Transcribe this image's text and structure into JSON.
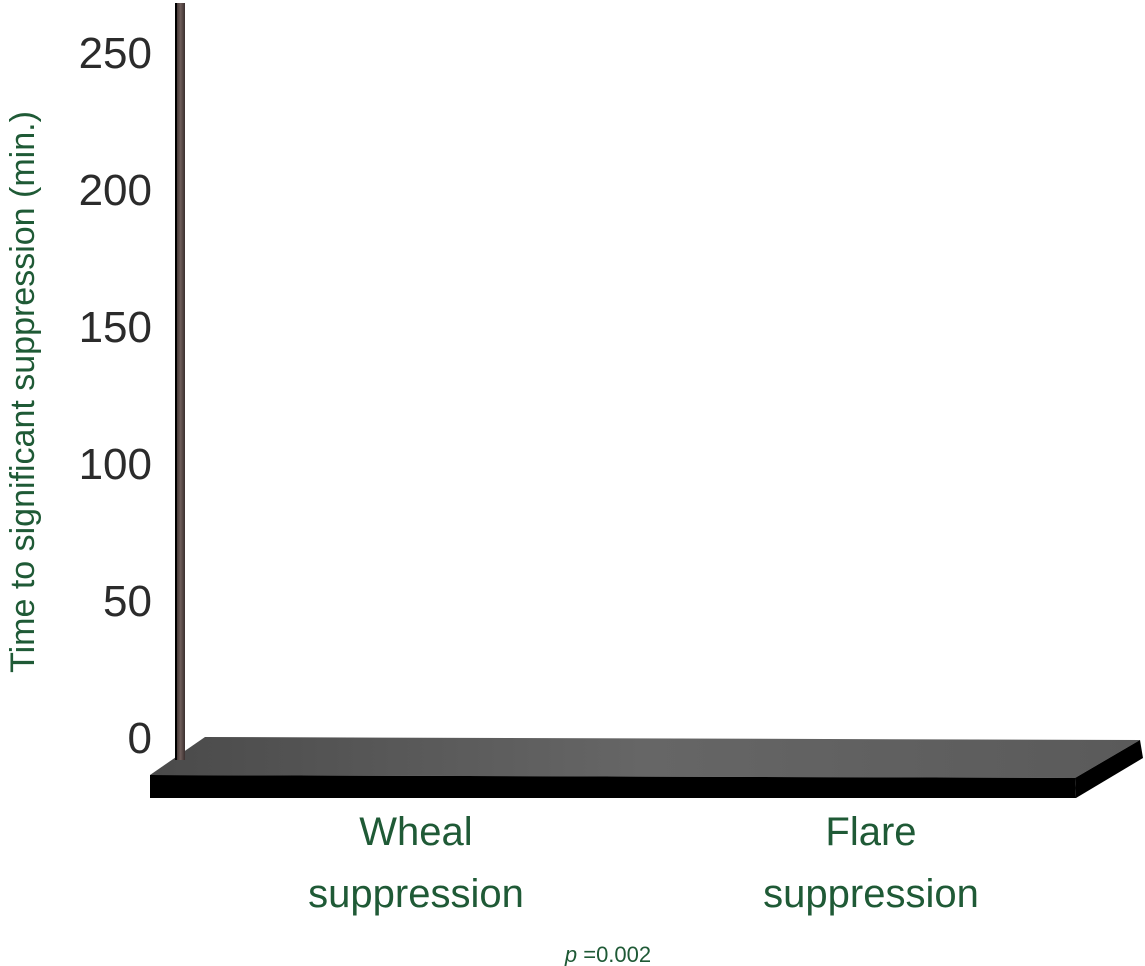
{
  "chart_data": {
    "type": "bar",
    "title": "",
    "ylabel": "Time to significant suppression (min.)",
    "xlabel": "",
    "categories": [
      "Wheal\nsuppression",
      "Flare\nsuppression"
    ],
    "series": [
      {
        "values": [
          null,
          null
        ]
      }
    ],
    "ylim": [
      0,
      250
    ],
    "yticks": [
      0,
      50,
      100,
      150,
      200,
      250
    ],
    "grid": false,
    "annotation": {
      "italic": "p",
      "text": " =0.002"
    }
  },
  "colors": {
    "axis_text": "#2b2b2b",
    "label_green": "#1f5a36",
    "floor_top": "#555555",
    "floor_front": "#000000",
    "wall": "#5a4a48"
  }
}
